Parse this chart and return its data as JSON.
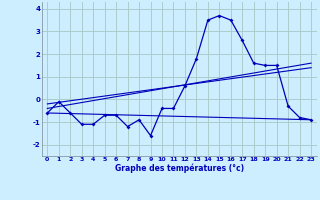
{
  "xlabel": "Graphe des températures (°c)",
  "background_color": "#cceeff",
  "grid_color": "#aacccc",
  "line_color": "#0000bb",
  "xlim": [
    -0.5,
    23.5
  ],
  "ylim": [
    -2.5,
    4.3
  ],
  "yticks": [
    -2,
    -1,
    0,
    1,
    2,
    3,
    4
  ],
  "xticks": [
    0,
    1,
    2,
    3,
    4,
    5,
    6,
    7,
    8,
    9,
    10,
    11,
    12,
    13,
    14,
    15,
    16,
    17,
    18,
    19,
    20,
    21,
    22,
    23
  ],
  "series1_x": [
    0,
    1,
    2,
    3,
    4,
    5,
    6,
    7,
    8,
    9,
    10,
    11,
    12,
    13,
    14,
    15,
    16,
    17,
    18,
    19,
    20,
    21,
    22,
    23
  ],
  "series1_y": [
    -0.6,
    -0.1,
    -0.6,
    -1.1,
    -1.1,
    -0.7,
    -0.7,
    -1.2,
    -0.9,
    -1.6,
    -0.4,
    -0.4,
    0.6,
    1.8,
    3.5,
    3.7,
    3.5,
    2.6,
    1.6,
    1.5,
    1.5,
    -0.3,
    -0.8,
    -0.9
  ],
  "series2_x": [
    0,
    23
  ],
  "series2_y": [
    -0.6,
    -0.9
  ],
  "series3_x": [
    0,
    23
  ],
  "series3_y": [
    -0.4,
    1.6
  ],
  "series4_x": [
    0,
    23
  ],
  "series4_y": [
    -0.2,
    1.4
  ]
}
